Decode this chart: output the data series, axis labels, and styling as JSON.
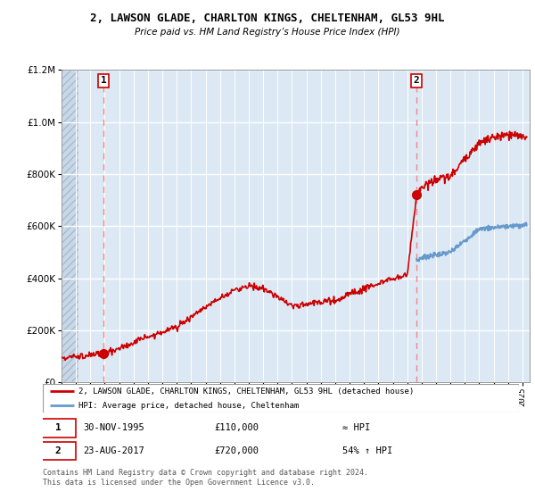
{
  "title": "2, LAWSON GLADE, CHARLTON KINGS, CHELTENHAM, GL53 9HL",
  "subtitle": "Price paid vs. HM Land Registry’s House Price Index (HPI)",
  "legend_label1": "2, LAWSON GLADE, CHARLTON KINGS, CHELTENHAM, GL53 9HL (detached house)",
  "legend_label2": "HPI: Average price, detached house, Cheltenham",
  "sale1_date": "30-NOV-1995",
  "sale1_price": 110000,
  "sale1_label": "1",
  "sale1_note": "≈ HPI",
  "sale2_date": "23-AUG-2017",
  "sale2_price": 720000,
  "sale2_label": "2",
  "sale2_note": "54% ↑ HPI",
  "footer": "Contains HM Land Registry data © Crown copyright and database right 2024.\nThis data is licensed under the Open Government Licence v3.0.",
  "hpi_color": "#6699cc",
  "price_color": "#cc0000",
  "dot_color": "#cc0000",
  "dashed_color": "#ee8888",
  "bg_color": "#dce9f5",
  "hatch_color": "#c8d8e8",
  "ylim": [
    0,
    1200000
  ],
  "xlim_start": 1993.0,
  "xlim_end": 2025.5,
  "sale1_year": 1995.92,
  "sale2_year": 2017.64,
  "ytick_interval": 200000,
  "title_fontsize": 9,
  "subtitle_fontsize": 8
}
